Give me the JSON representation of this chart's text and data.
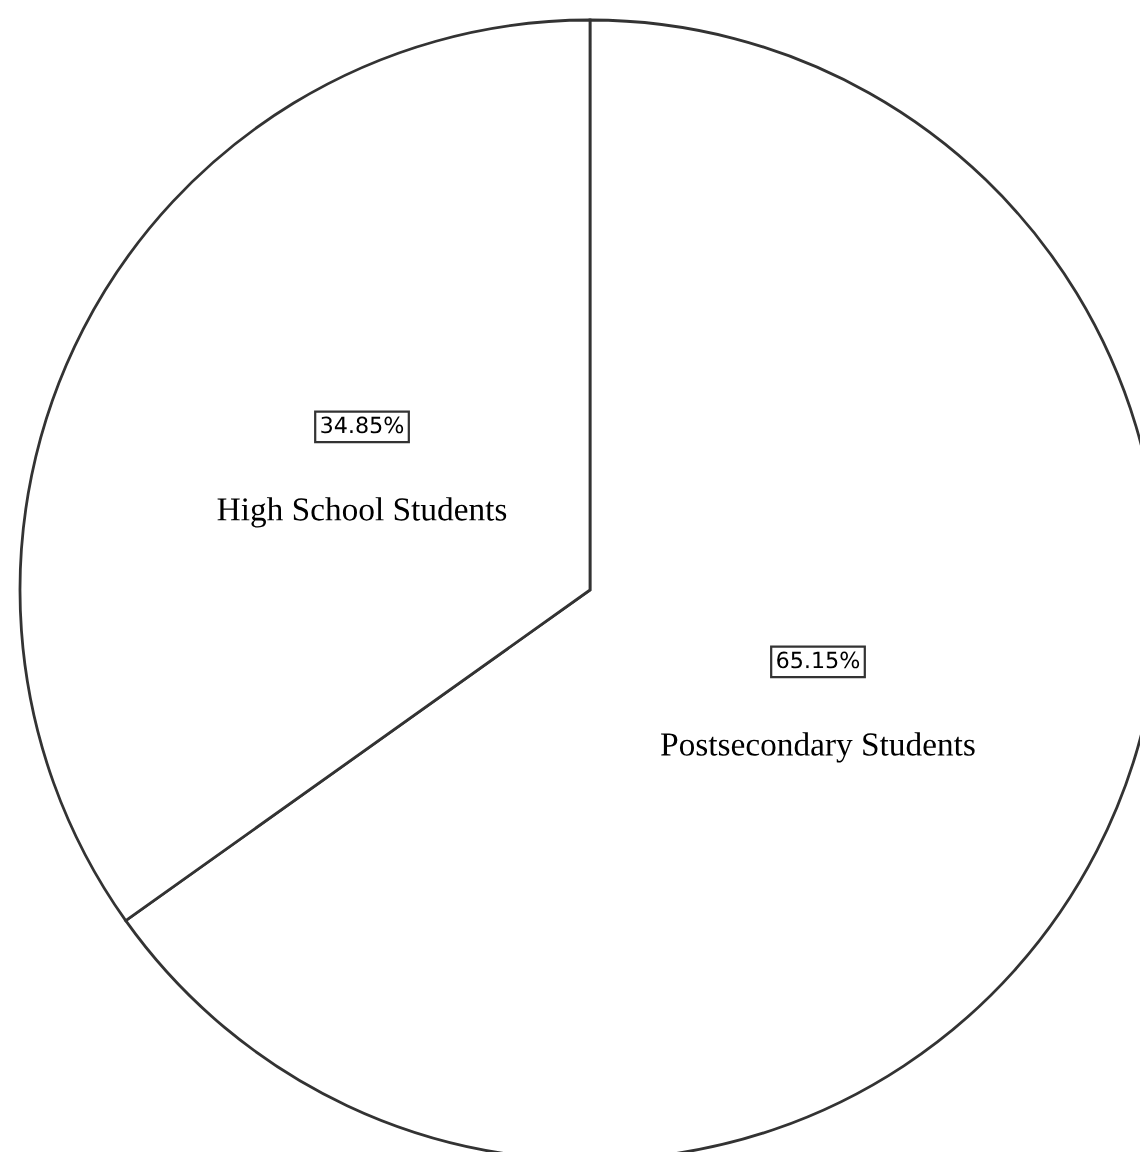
{
  "chart_data": {
    "type": "pie",
    "categories": [
      "Postsecondary Students",
      "High School Students"
    ],
    "values": [
      65.15,
      34.85
    ],
    "colors": [
      "#ffffff",
      "#ffffff"
    ],
    "value_labels": [
      "65.15%",
      "34.85%"
    ]
  }
}
